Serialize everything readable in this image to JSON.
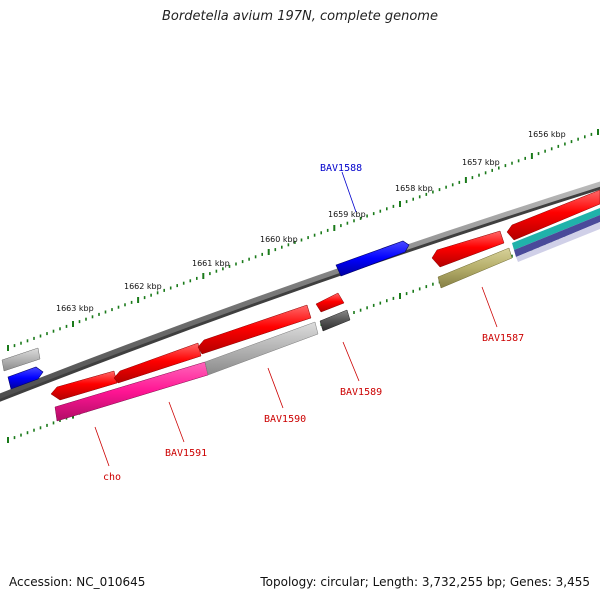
{
  "title": "Bordetella avium 197N, complete genome",
  "footer": {
    "accession": "Accession: NC_010645",
    "stats": "Topology: circular; Length: 3,732,255 bp; Genes: 3,455"
  },
  "scale_labels": [
    "1656 kbp",
    "1657 kbp",
    "1658 kbp",
    "1659 kbp",
    "1660 kbp",
    "1661 kbp",
    "1662 kbp",
    "1663 kbp"
  ],
  "gene_labels": [
    {
      "text": "BAV1588",
      "color": "#0000cc"
    },
    {
      "text": "BAV1587",
      "color": "#cc0000"
    },
    {
      "text": "BAV1589",
      "color": "#cc0000"
    },
    {
      "text": "BAV1590",
      "color": "#cc0000"
    },
    {
      "text": "BAV1591",
      "color": "#cc0000"
    },
    {
      "text": "cho",
      "color": "#cc0000"
    }
  ],
  "colors": {
    "backbone": "#808080",
    "scale_ticks": "#1a7a1a",
    "gene_red": "#ff0000",
    "gene_blue": "#0000ff",
    "gene_pink": "#ff1493",
    "gene_gray": "#b4b4b4",
    "gene_dark": "#555555",
    "gene_olive": "#b5ae6a",
    "gene_cyan": "#20b2aa",
    "gene_navy": "#4a4a9a"
  }
}
